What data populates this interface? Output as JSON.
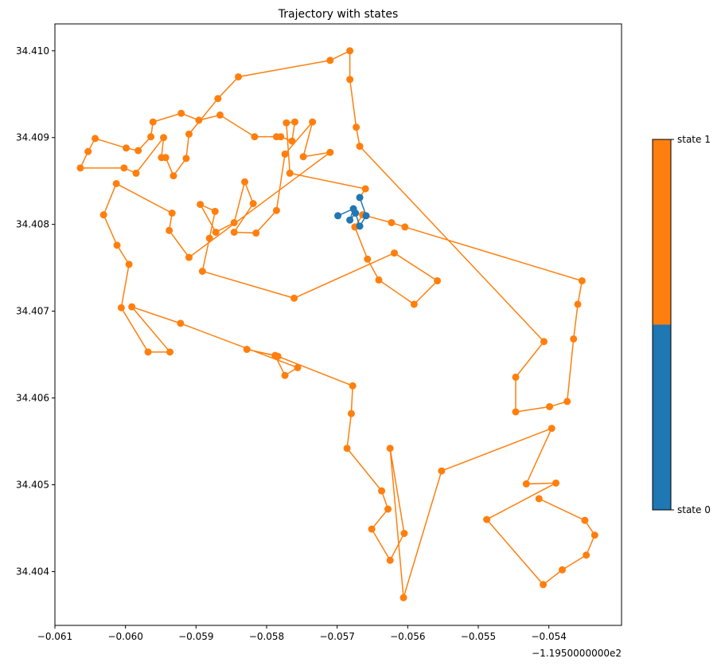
{
  "chart_data": {
    "type": "line",
    "title": "Trajectory with states",
    "x_offset_label": "−1.1950000000e2",
    "xlim": [
      -0.061,
      -0.05297
    ],
    "ylim": [
      34.40338,
      34.41031
    ],
    "xticks": [
      {
        "value": -0.061,
        "label": "−0.061"
      },
      {
        "value": -0.06,
        "label": "−0.060"
      },
      {
        "value": -0.059,
        "label": "−0.059"
      },
      {
        "value": -0.058,
        "label": "−0.058"
      },
      {
        "value": -0.057,
        "label": "−0.057"
      },
      {
        "value": -0.056,
        "label": "−0.056"
      },
      {
        "value": -0.055,
        "label": "−0.055"
      },
      {
        "value": -0.054,
        "label": "−0.054"
      }
    ],
    "yticks": [
      34.404,
      34.405,
      34.406,
      34.407,
      34.408,
      34.409,
      {
        "value": 34.41,
        "label": "34.410"
      }
    ],
    "series": [
      {
        "name": "state 0",
        "color": "#1f77b4",
        "x": [
          -0.05699,
          -0.05677,
          -0.05682,
          -0.05674,
          -0.05668,
          -0.05659,
          -0.05668
        ],
        "values": [
          34.4081,
          34.40818,
          34.40805,
          34.40813,
          34.40798,
          34.4081,
          34.40831
        ]
      },
      {
        "name": "state 1",
        "color": "#ff7f0e",
        "x": [
          -0.05668,
          -0.0566,
          -0.05767,
          -0.05772,
          -0.0576,
          -0.05764,
          -0.0578,
          -0.05786,
          -0.05817,
          -0.05866,
          -0.05896,
          -0.05921,
          -0.05961,
          -0.05964,
          -0.05982,
          -0.05999,
          -0.06043,
          -0.06053,
          -0.06064,
          -0.06002,
          -0.05985,
          -0.05946,
          -0.05949,
          -0.05943,
          -0.05932,
          -0.05914,
          -0.0591,
          -0.05869,
          -0.0584,
          -0.0571,
          -0.05682,
          -0.05682,
          -0.05673,
          -0.05668,
          -0.05407,
          -0.05447,
          -0.05447,
          -0.05399,
          -0.05374,
          -0.05365,
          -0.05359,
          -0.05353,
          -0.05604,
          -0.05623,
          -0.05664,
          -0.05675,
          -0.05657,
          -0.05641,
          -0.05591,
          -0.05558,
          -0.05619,
          -0.05761,
          -0.05891,
          -0.05881,
          -0.05873,
          -0.05894,
          -0.05872,
          -0.05846,
          -0.05831,
          -0.05819,
          -0.05846,
          -0.05815,
          -0.05786,
          -0.05774,
          -0.05735,
          -0.05748,
          -0.0571,
          -0.0591,
          -0.05938,
          -0.05934,
          -0.06013,
          -0.06031,
          -0.06012,
          -0.05995,
          -0.06006,
          -0.05968,
          -0.05937,
          -0.05991,
          -0.05922,
          -0.05756,
          -0.05774,
          -0.05788,
          -0.05828,
          -0.05784,
          -0.05678,
          -0.0568,
          -0.05686,
          -0.05637,
          -0.05628,
          -0.05651,
          -0.05625,
          -0.05605,
          -0.05625,
          -0.05606,
          -0.05552,
          -0.05396,
          -0.05432,
          -0.0539,
          -0.05488,
          -0.05408,
          -0.05381,
          -0.05347,
          -0.05335,
          -0.05349,
          -0.05414
        ],
        "values": [
          34.40831,
          34.40841,
          34.40859,
          34.40917,
          34.40918,
          34.40896,
          34.40901,
          34.40901,
          34.40901,
          34.40926,
          34.4092,
          34.40928,
          34.40918,
          34.40901,
          34.40885,
          34.40888,
          34.40899,
          34.40884,
          34.40865,
          34.40865,
          34.40859,
          34.409,
          34.40877,
          34.40877,
          34.40856,
          34.40876,
          34.40904,
          34.40945,
          34.4097,
          34.40989,
          34.41,
          34.40967,
          34.40912,
          34.4089,
          34.40665,
          34.40624,
          34.40584,
          34.4059,
          34.40596,
          34.40668,
          34.40708,
          34.40735,
          34.40797,
          34.40802,
          34.40811,
          34.40797,
          34.4076,
          34.40736,
          34.40708,
          34.40735,
          34.40767,
          34.40715,
          34.40746,
          34.40784,
          34.40815,
          34.40823,
          34.40791,
          34.40802,
          34.40849,
          34.40824,
          34.40791,
          34.4079,
          34.40816,
          34.40881,
          34.40918,
          34.40878,
          34.40883,
          34.40762,
          34.40793,
          34.40813,
          34.40847,
          34.40811,
          34.40776,
          34.40754,
          34.40704,
          34.40653,
          34.40653,
          34.40705,
          34.40686,
          34.40635,
          34.40626,
          34.40649,
          34.40656,
          34.40648,
          34.40614,
          34.40582,
          34.40542,
          34.40493,
          34.40472,
          34.40449,
          34.40413,
          34.40444,
          34.40542,
          34.4037,
          34.40516,
          34.40565,
          34.40501,
          34.40502,
          34.4046,
          34.40385,
          34.40402,
          34.40419,
          34.40442,
          34.40459,
          34.40484
        ]
      }
    ]
  }
}
